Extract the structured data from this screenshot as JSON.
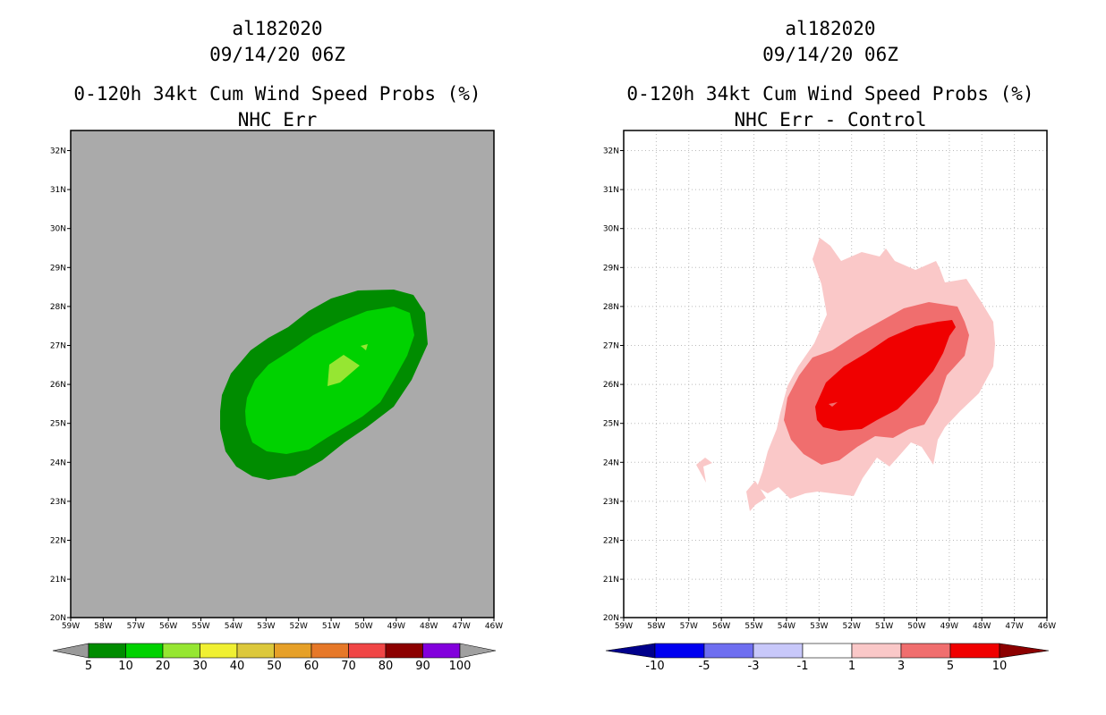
{
  "panels": [
    {
      "storm_id": "al182020",
      "datetime": "09/14/20 06Z",
      "product_title": "0-120h 34kt Cum Wind Speed Probs (%)",
      "subtitle": "NHC Err",
      "colorbar": {
        "labels": [
          "5",
          "10",
          "20",
          "30",
          "40",
          "50",
          "60",
          "70",
          "80",
          "90",
          "100"
        ],
        "colors": [
          "#9a9a9a",
          "#008c00",
          "#00d200",
          "#96e632",
          "#f0f032",
          "#dcc83c",
          "#e6a028",
          "#e67828",
          "#f04646",
          "#8c0000",
          "#8200dc",
          "#a0a0a0"
        ]
      }
    },
    {
      "storm_id": "al182020",
      "datetime": "09/14/20 06Z",
      "product_title": "0-120h 34kt Cum Wind Speed Probs (%)",
      "subtitle": "NHC Err - Control",
      "colorbar": {
        "labels": [
          "-10",
          "-5",
          "-3",
          "-1",
          "1",
          "3",
          "5",
          "10"
        ],
        "colors": [
          "#00008c",
          "#0000f0",
          "#6e6ef0",
          "#c8c8fa",
          "#ffffff",
          "#fac8c8",
          "#f06e6e",
          "#f00000",
          "#8c0000"
        ]
      }
    }
  ],
  "axes": {
    "lat_labels": [
      "32N",
      "31N",
      "30N",
      "29N",
      "28N",
      "27N",
      "26N",
      "25N",
      "24N",
      "23N",
      "22N",
      "21N",
      "20N"
    ],
    "lon_labels": [
      "59W",
      "58W",
      "57W",
      "56W",
      "55W",
      "54W",
      "53W",
      "52W",
      "51W",
      "50W",
      "49W",
      "48W",
      "47W",
      "46W"
    ]
  },
  "colors": {
    "left_background": "#aaaaaa",
    "left_outer": "#008c00",
    "left_mid": "#00d200",
    "left_inner": "#96e632",
    "right_pale": "#fac8c8",
    "right_mid": "#f06e6e",
    "right_core": "#f00000"
  }
}
